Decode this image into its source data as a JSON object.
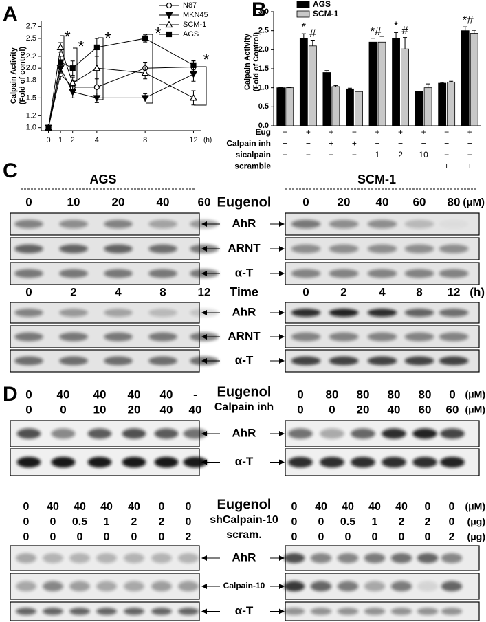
{
  "chart_data": [
    {
      "type": "line",
      "ylabel": [
        "Calpain Activity",
        "(Fold of control)"
      ],
      "xlabel": "(h)",
      "x": [
        0,
        1,
        2,
        4,
        8,
        12
      ],
      "xlim": [
        -0.6,
        12.6
      ],
      "xticks": [
        0,
        1,
        2,
        4,
        8,
        12
      ],
      "ylim": [
        0.95,
        2.8
      ],
      "yticks": [
        {
          "value": 1,
          "label": "1.0"
        },
        1.2,
        1.5,
        1.8,
        {
          "value": 2,
          "label": "2.0"
        },
        2.2,
        2.5,
        2.7
      ],
      "series": [
        {
          "name": "N87",
          "color": "#000000",
          "marker": "circle",
          "filled": false,
          "values": [
            1.0,
            1.9,
            1.68,
            1.68,
            2.0,
            2.02
          ],
          "errors": [
            0.02,
            0.1,
            0.08,
            0.14,
            0.1,
            0.1
          ]
        },
        {
          "name": "MKN45",
          "color": "#000000",
          "marker": "triangle-down",
          "filled": true,
          "values": [
            1.0,
            2.0,
            1.6,
            1.5,
            1.5,
            1.9
          ],
          "errors": [
            0.02,
            0.08,
            0.1,
            0.08,
            0.07,
            0.12
          ]
        },
        {
          "name": "SCM-1",
          "color": "#000000",
          "marker": "triangle-up",
          "filled": false,
          "values": [
            1.0,
            2.35,
            1.75,
            2.0,
            1.92,
            1.5
          ],
          "errors": [
            0.02,
            0.08,
            0.1,
            0.2,
            0.1,
            0.12
          ]
        },
        {
          "name": "AGS",
          "color": "#000000",
          "marker": "square",
          "filled": true,
          "values": [
            1.0,
            2.1,
            2.0,
            2.35,
            2.5,
            2.05
          ],
          "errors": [
            0.02,
            0.1,
            0.12,
            0.15,
            0.06,
            0.08
          ]
        }
      ],
      "annotations": [
        "*",
        "*",
        "*",
        "*",
        "*"
      ]
    },
    {
      "type": "bar",
      "ylabel": [
        "Calpain Activity",
        "(Fold of Control)"
      ],
      "ylim": [
        0,
        3
      ],
      "yticks": [
        {
          "value": 0,
          "label": "0.0"
        },
        0.5,
        {
          "value": 1,
          "label": "1.0"
        },
        1.5,
        {
          "value": 2,
          "label": "2.0"
        },
        2.5,
        {
          "value": 3,
          "label": "3.0"
        }
      ],
      "series": [
        {
          "name": "AGS",
          "color": "#000000",
          "values": [
            1.0,
            2.3,
            1.4,
            0.97,
            2.2,
            2.3,
            0.9,
            1.12,
            2.5
          ],
          "errors": [
            0.01,
            0.12,
            0.05,
            0.02,
            0.1,
            0.15,
            0.01,
            0.02,
            0.1
          ]
        },
        {
          "name": "SCM-1",
          "color": "#c8c8c8",
          "values": [
            1.0,
            2.1,
            1.03,
            0.9,
            2.2,
            2.02,
            1.0,
            1.15,
            2.43
          ],
          "errors": [
            0.01,
            0.15,
            0.03,
            0.01,
            0.15,
            0.3,
            0.1,
            0.02,
            0.08
          ]
        }
      ],
      "treatments": [
        {
          "name": "Eug",
          "marks": [
            "−",
            "+",
            "+",
            "−",
            "+",
            "+",
            "+",
            "−",
            "+"
          ]
        },
        {
          "name": "Calpain inh",
          "marks": [
            "−",
            "−",
            "+",
            "+",
            "−",
            "−",
            "−",
            "−",
            "−"
          ]
        },
        {
          "name": "sicalpain",
          "marks": [
            "−",
            "−",
            "−",
            "−",
            "1",
            "2",
            "10",
            "−",
            "−"
          ]
        },
        {
          "name": "scramble",
          "marks": [
            "−",
            "−",
            "−",
            "−",
            "−",
            "−",
            "−",
            "+",
            "+"
          ]
        }
      ],
      "annotations": [
        "*",
        "#",
        "*#",
        "*",
        "#",
        "*#"
      ]
    }
  ],
  "panel_labels": [
    "A",
    "B",
    "C",
    "D"
  ],
  "panel_c": {
    "cell_lines": [
      "AGS",
      "SCM-1"
    ],
    "dose_label": "Eugenol",
    "dose_unit": "(μM)",
    "dose_left": [
      "0",
      "10",
      "20",
      "40",
      "60"
    ],
    "dose_right": [
      "0",
      "20",
      "40",
      "60",
      "80"
    ],
    "time_label": "Time",
    "time_unit": "(h)",
    "time_left": [
      "0",
      "2",
      "4",
      "8",
      "12"
    ],
    "time_right": [
      "0",
      "2",
      "4",
      "8",
      "12"
    ],
    "blots": [
      "AhR",
      "ARNT",
      "α-T"
    ]
  },
  "panel_d": {
    "top": {
      "row_labels": [
        "Eugenol",
        "Calpain  inh"
      ],
      "units": [
        "(μM)",
        "(μM)"
      ],
      "left": [
        [
          "0",
          "40",
          "40",
          "40",
          "40",
          "-"
        ],
        [
          "0",
          "0",
          "10",
          "20",
          "40",
          "40"
        ]
      ],
      "right": [
        [
          "0",
          "80",
          "80",
          "80",
          "80",
          "0"
        ],
        [
          "0",
          "0",
          "20",
          "40",
          "60",
          "60"
        ]
      ],
      "blots": [
        "AhR",
        "α-T"
      ]
    },
    "bottom": {
      "row_labels": [
        "Eugenol",
        "shCalpain-10",
        "scram."
      ],
      "units": [
        "(μM)",
        "(μg)",
        "(μg)"
      ],
      "left": [
        [
          "0",
          "40",
          "40",
          "40",
          "40",
          "0",
          "0"
        ],
        [
          "0",
          "0",
          "0.5",
          "1",
          "2",
          "2",
          "0"
        ],
        [
          "0",
          "0",
          "0",
          "0",
          "0",
          "0",
          "2"
        ]
      ],
      "right": [
        [
          "0",
          "40",
          "40",
          "40",
          "40",
          "0",
          "0"
        ],
        [
          "0",
          "0",
          "0.5",
          "1",
          "2",
          "2",
          "0"
        ],
        [
          "0",
          "0",
          "0",
          "0",
          "0",
          "0",
          "2"
        ]
      ],
      "blots": [
        "AhR",
        "Calpain-10",
        "α-T"
      ]
    }
  }
}
